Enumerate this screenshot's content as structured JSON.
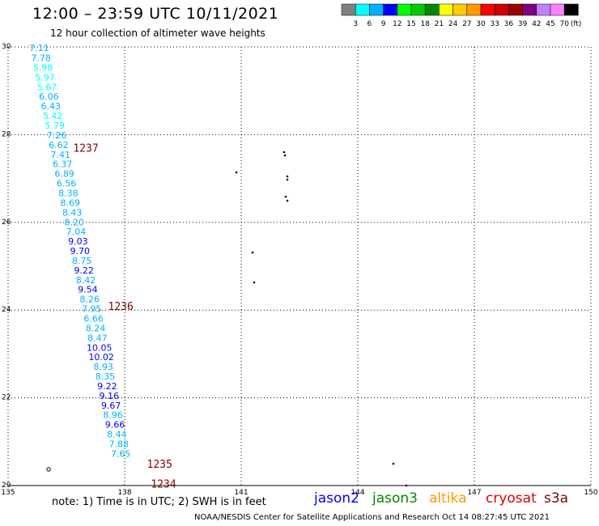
{
  "title": "12:00 – 23:59 UTC 10/11/2021",
  "subtitle": "12 hour collection of altimeter wave heights",
  "note": "note: 1) Time is in UTC; 2) SWH is in feet",
  "credit": "NOAA/NESDIS Center for Satellite Applications and Research    Oct 14 08:27:45 UTC 2021",
  "missions": [
    {
      "label": "jason2",
      "color": "#0000ff"
    },
    {
      "label": "jason3",
      "color": "#008800"
    },
    {
      "label": "altika",
      "color": "#ff9900"
    },
    {
      "label": "cryosat",
      "color": "#dd0000"
    },
    {
      "label": "s3a",
      "color": "#800000"
    }
  ],
  "colorbar": {
    "unit": "(ft)",
    "colors": [
      "#808080",
      "#00ffff",
      "#00b0ff",
      "#0000ff",
      "#00ff00",
      "#00cc00",
      "#008800",
      "#ffff00",
      "#ffcc00",
      "#ff9900",
      "#ff0000",
      "#cc0000",
      "#990000",
      "#800080",
      "#c080ff",
      "#ff80ff",
      "#000000"
    ],
    "labels": [
      "3",
      "6",
      "9",
      "12",
      "15",
      "18",
      "21",
      "24",
      "27",
      "30",
      "33",
      "36",
      "39",
      "42",
      "45",
      "70"
    ]
  },
  "chart_data": {
    "type": "scatter",
    "title": "12:00 – 23:59 UTC 10/11/2021",
    "subtitle": "12 hour collection of altimeter wave heights",
    "xlim": [
      135,
      150
    ],
    "ylim": [
      20,
      30
    ],
    "xticks": [
      "135",
      "138",
      "141",
      "144",
      "147",
      "150"
    ],
    "yticks": [
      "20",
      "22",
      "24",
      "26",
      "28",
      "30"
    ],
    "grid": true,
    "series": [
      {
        "name": "cryosat",
        "color": "#dd0000",
        "points": [
          {
            "lon": 135.8,
            "lat": 29.98,
            "swh": "7.11"
          },
          {
            "lon": 135.85,
            "lat": 29.75,
            "swh": "7.78"
          },
          {
            "lon": 135.9,
            "lat": 29.53,
            "swh": "5.98"
          },
          {
            "lon": 135.95,
            "lat": 29.31,
            "swh": "5.97"
          },
          {
            "lon": 136.0,
            "lat": 29.09,
            "swh": "5.67"
          },
          {
            "lon": 136.05,
            "lat": 28.87,
            "swh": "6.06"
          },
          {
            "lon": 136.1,
            "lat": 28.65,
            "swh": "6.43"
          },
          {
            "lon": 136.15,
            "lat": 28.43,
            "swh": "5.42"
          },
          {
            "lon": 136.2,
            "lat": 28.21,
            "swh": "5.79"
          },
          {
            "lon": 136.25,
            "lat": 27.99,
            "swh": "7.26"
          },
          {
            "lon": 136.3,
            "lat": 27.77,
            "swh": "6.62"
          },
          {
            "lon": 136.35,
            "lat": 27.55,
            "swh": "7.41"
          },
          {
            "lon": 136.4,
            "lat": 27.33,
            "swh": "6.37"
          },
          {
            "lon": 136.45,
            "lat": 27.11,
            "swh": "6.89"
          },
          {
            "lon": 136.5,
            "lat": 26.89,
            "swh": "6.56"
          },
          {
            "lon": 136.55,
            "lat": 26.67,
            "swh": "8.38"
          },
          {
            "lon": 136.6,
            "lat": 26.45,
            "swh": "8.69"
          },
          {
            "lon": 136.65,
            "lat": 26.23,
            "swh": "8.43"
          },
          {
            "lon": 136.7,
            "lat": 26.01,
            "swh": "8.20"
          },
          {
            "lon": 136.75,
            "lat": 25.79,
            "swh": "7.04"
          },
          {
            "lon": 136.8,
            "lat": 25.57,
            "swh": "9.03"
          },
          {
            "lon": 136.85,
            "lat": 25.35,
            "swh": "9.70"
          },
          {
            "lon": 136.9,
            "lat": 25.13,
            "swh": "8.75"
          },
          {
            "lon": 136.95,
            "lat": 24.91,
            "swh": "9.22"
          },
          {
            "lon": 137.0,
            "lat": 24.69,
            "swh": "8.42"
          },
          {
            "lon": 137.05,
            "lat": 24.47,
            "swh": "9.54"
          },
          {
            "lon": 137.1,
            "lat": 24.25,
            "swh": "8.26"
          },
          {
            "lon": 137.15,
            "lat": 24.03,
            "swh": "7.95"
          },
          {
            "lon": 137.2,
            "lat": 23.81,
            "swh": "6.66"
          },
          {
            "lon": 137.25,
            "lat": 23.59,
            "swh": "8.24"
          },
          {
            "lon": 137.3,
            "lat": 23.37,
            "swh": "8.47"
          },
          {
            "lon": 137.35,
            "lat": 23.15,
            "swh": "10.05"
          },
          {
            "lon": 137.4,
            "lat": 22.93,
            "swh": "10.02"
          },
          {
            "lon": 137.45,
            "lat": 22.71,
            "swh": "8.93"
          },
          {
            "lon": 137.5,
            "lat": 22.49,
            "swh": "8.35"
          },
          {
            "lon": 137.55,
            "lat": 22.27,
            "swh": "9.22"
          },
          {
            "lon": 137.6,
            "lat": 22.05,
            "swh": "9.16"
          },
          {
            "lon": 137.65,
            "lat": 21.83,
            "swh": "9.67"
          },
          {
            "lon": 137.7,
            "lat": 21.61,
            "swh": "8.96"
          },
          {
            "lon": 137.75,
            "lat": 21.39,
            "swh": "9.66"
          },
          {
            "lon": 137.8,
            "lat": 21.17,
            "swh": "8.44"
          },
          {
            "lon": 137.85,
            "lat": 20.95,
            "swh": "7.88"
          },
          {
            "lon": 137.9,
            "lat": 20.73,
            "swh": "7.65"
          }
        ]
      }
    ],
    "time_annotations": [
      {
        "text": "1237",
        "lon": 137.0,
        "lat": 27.7
      },
      {
        "text": "1236",
        "lon": 137.9,
        "lat": 24.1
      },
      {
        "text": "1235",
        "lon": 138.9,
        "lat": 20.5
      },
      {
        "text": "1234",
        "lon": 139.0,
        "lat": 20.05
      }
    ]
  }
}
